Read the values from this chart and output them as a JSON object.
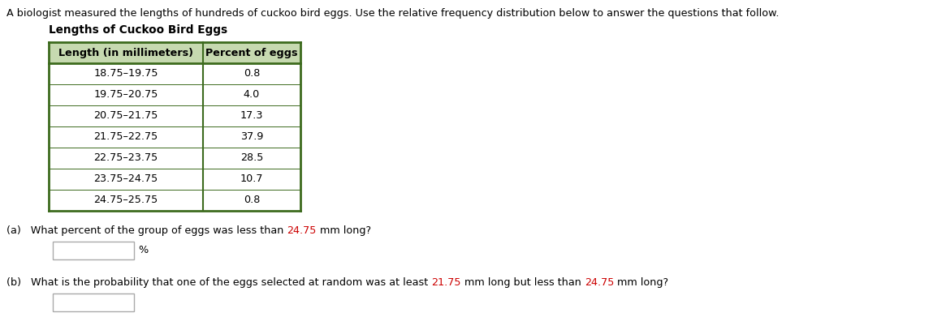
{
  "intro_text": "A biologist measured the lengths of hundreds of cuckoo bird eggs. Use the relative frequency distribution below to answer the questions that follow.",
  "table_title": "Lengths of Cuckoo Bird Eggs",
  "col1_header": "Length (in millimeters)",
  "col2_header": "Percent of eggs",
  "rows": [
    [
      "18.75–19.75",
      "0.8"
    ],
    [
      "19.75–20.75",
      "4.0"
    ],
    [
      "20.75–21.75",
      "17.3"
    ],
    [
      "21.75–22.75",
      "37.9"
    ],
    [
      "22.75–23.75",
      "28.5"
    ],
    [
      "23.75–24.75",
      "10.7"
    ],
    [
      "24.75–25.75",
      "0.8"
    ]
  ],
  "question_a_parts": [
    {
      "text": "(a)   What percent of the group of eggs was less than ",
      "color": "#000000"
    },
    {
      "text": "24.75",
      "color": "#CC0000"
    },
    {
      "text": " mm long?",
      "color": "#000000"
    }
  ],
  "question_b_parts": [
    {
      "text": "(b)   What is the probability that one of the eggs selected at random was at least ",
      "color": "#000000"
    },
    {
      "text": "21.75",
      "color": "#CC0000"
    },
    {
      "text": " mm long but less than ",
      "color": "#000000"
    },
    {
      "text": "24.75",
      "color": "#CC0000"
    },
    {
      "text": " mm long?",
      "color": "#000000"
    }
  ],
  "highlight_color": "#CC0000",
  "header_bg_color": "#c6d9b0",
  "table_border_color": "#3d6b1e",
  "text_color": "#000000",
  "background_color": "#ffffff",
  "font_size_intro": 9.2,
  "font_size_title": 9.8,
  "font_size_table": 9.2,
  "font_size_question": 9.2,
  "dpi": 100,
  "fig_width": 11.49,
  "fig_height": 3.91
}
